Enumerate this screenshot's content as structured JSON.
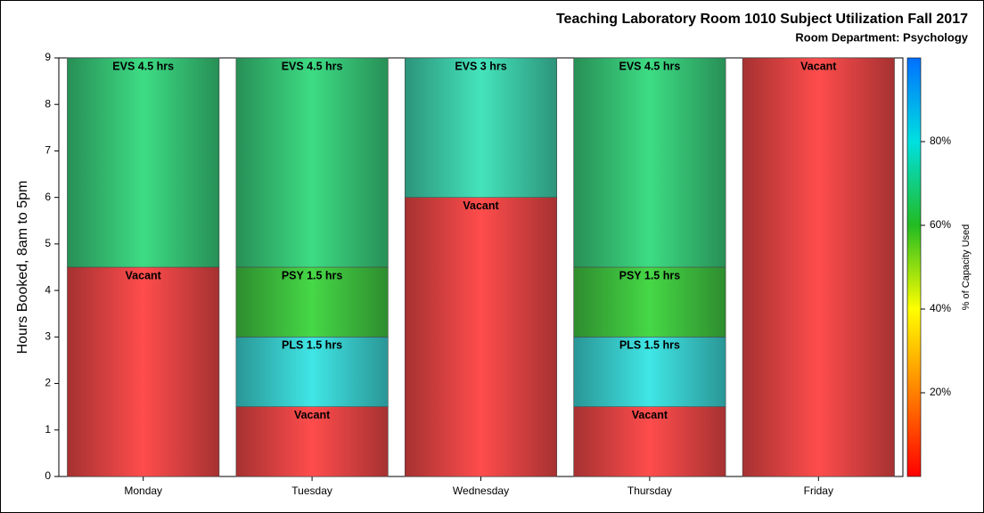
{
  "chart_data": {
    "type": "stacked_bar",
    "title": "Teaching Laboratory Room 1010 Subject Utilization Fall 2017",
    "subtitle": "Room Department:  Psychology",
    "y_label": "Hours Booked, 8am to 5pm",
    "categories": [
      "Monday",
      "Tuesday",
      "Wednesday",
      "Thursday",
      "Friday"
    ],
    "series": [
      {
        "values": [
          4.5,
          1.5,
          6,
          1.5,
          9
        ],
        "value_labels": [
          "Vacant",
          "Vacant",
          "Vacant",
          "Vacant",
          "Vacant"
        ],
        "colors": [
          "#ff4c4c",
          "#ff4c4c",
          "#ff4c4c",
          "#ff4c4c",
          "#ff4c4c"
        ]
      },
      {
        "values": [
          null,
          1.5,
          null,
          1.5,
          null
        ],
        "value_labels": [
          null,
          "PLS 1.5 hrs",
          null,
          "PLS 1.5 hrs",
          null
        ],
        "colors": [
          null,
          "#40e6e6",
          null,
          "#40e6e6",
          null
        ]
      },
      {
        "values": [
          null,
          1.5,
          null,
          1.5,
          null
        ],
        "value_labels": [
          null,
          "PSY 1.5 hrs",
          null,
          "PSY 1.5 hrs",
          null
        ],
        "colors": [
          null,
          "#46d846",
          null,
          "#46d846",
          null
        ]
      },
      {
        "values": [
          4.5,
          4.5,
          3,
          4.5,
          null
        ],
        "value_labels": [
          "EVS 4.5 hrs",
          "EVS 4.5 hrs",
          "EVS 3 hrs",
          "EVS 4.5 hrs",
          null
        ],
        "colors": [
          "#3ddc84",
          "#3ddc84",
          "#44e4bc",
          "#3ddc84",
          null
        ]
      }
    ],
    "ylim": [
      0,
      9
    ],
    "yticks": [
      0,
      1,
      2,
      3,
      4,
      5,
      6,
      7,
      8,
      9
    ],
    "colorbar": {
      "label": "% of Capacity Used",
      "lim": [
        0,
        100
      ],
      "ticks": [
        {
          "value": 20,
          "label": "20%"
        },
        {
          "value": 40,
          "label": "40%"
        },
        {
          "value": 60,
          "label": "60%"
        },
        {
          "value": 80,
          "label": "80%"
        }
      ],
      "colors": [
        "#ff0000",
        "#ff8000",
        "#ffff00",
        "#22bb22",
        "#00e0e0",
        "#0070ff"
      ]
    }
  }
}
